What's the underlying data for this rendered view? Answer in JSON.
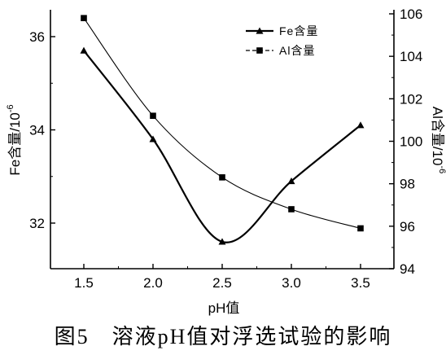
{
  "chart_data": {
    "type": "line",
    "x": [
      1.5,
      2.0,
      2.5,
      3.0,
      3.5
    ],
    "x_tick_labels": [
      "1.5",
      "2.0",
      "2.5",
      "3.0",
      "3.5"
    ],
    "xlim": [
      1.5,
      3.5
    ],
    "xlabel": "pH值",
    "y_left": {
      "label": "Fe含量/10",
      "label_superscript": "-6",
      "ylim": [
        31,
        36.5
      ],
      "ticks": [
        32,
        34,
        36
      ],
      "tick_labels": [
        "32",
        "34",
        "36"
      ]
    },
    "y_right": {
      "label": "Al含量/10",
      "label_superscript": "-6",
      "ylim": [
        94,
        106
      ],
      "ticks": [
        94,
        96,
        98,
        100,
        102,
        104,
        106
      ],
      "tick_labels": [
        "94",
        "96",
        "98",
        "100",
        "102",
        "104",
        "106"
      ]
    },
    "series": [
      {
        "name": "Fe含量",
        "axis": "left",
        "marker": "triangle",
        "style": "thick",
        "values": [
          35.7,
          33.8,
          31.6,
          32.9,
          34.1
        ]
      },
      {
        "name": "Al含量",
        "axis": "right",
        "marker": "square",
        "style": "thin",
        "values": [
          105.8,
          101.2,
          98.3,
          96.8,
          95.9
        ]
      }
    ],
    "legend": {
      "position": "top-right",
      "entries": [
        "Fe含量",
        "Al含量"
      ]
    },
    "grid": false,
    "caption": "图5　溶液pH值对浮选试验的影响"
  }
}
